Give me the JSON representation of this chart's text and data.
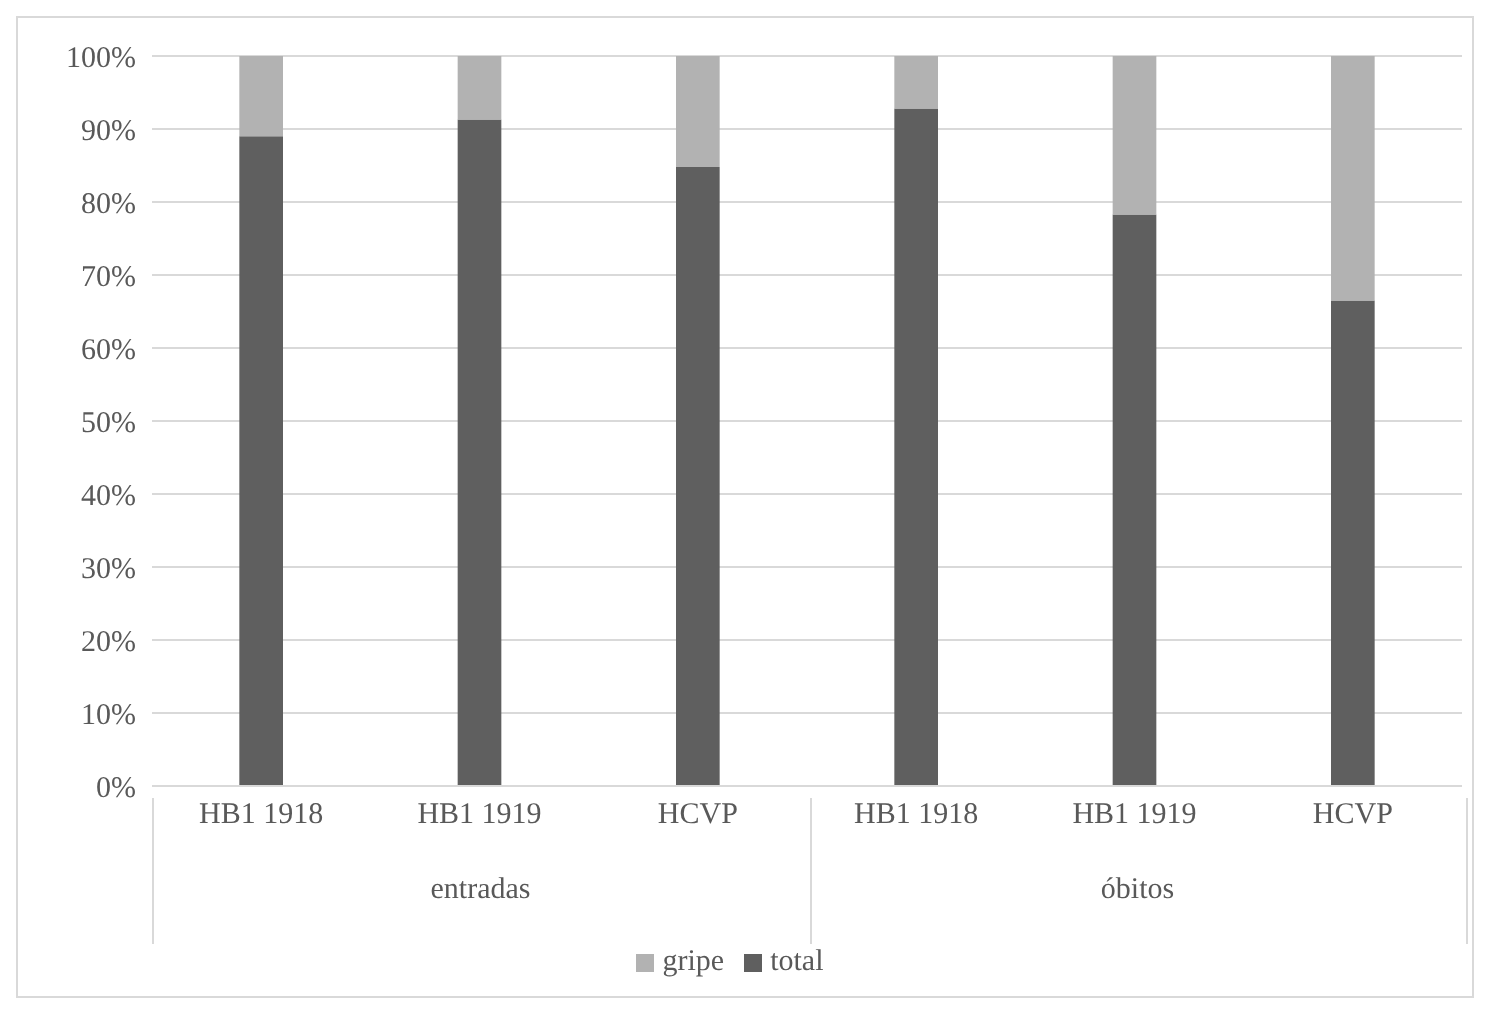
{
  "chart_data": {
    "type": "bar",
    "stacked": true,
    "categories": [
      "HB1 1918",
      "HB1 1919",
      "HCVP",
      "HB1 1918",
      "HB1 1919",
      "HCVP"
    ],
    "series": [
      {
        "name": "total",
        "color": "#5f5f5f",
        "values": [
          89,
          91.3,
          84.8,
          92.8,
          78.3,
          66.5
        ]
      },
      {
        "name": "gripe",
        "color": "#b2b2b2",
        "values": [
          11,
          8.7,
          15.2,
          7.2,
          21.7,
          33.5
        ]
      }
    ],
    "ylim": [
      0,
      100
    ],
    "yticks": [
      {
        "value": 0,
        "label": "0%"
      },
      {
        "value": 10,
        "label": "10%"
      },
      {
        "value": 20,
        "label": "20%"
      },
      {
        "value": 30,
        "label": "30%"
      },
      {
        "value": 40,
        "label": "40%"
      },
      {
        "value": 50,
        "label": "50%"
      },
      {
        "value": 60,
        "label": "60%"
      },
      {
        "value": 70,
        "label": "70%"
      },
      {
        "value": 80,
        "label": "80%"
      },
      {
        "value": 90,
        "label": "90%"
      },
      {
        "value": 100,
        "label": "100%"
      }
    ],
    "grid": "y",
    "legend": "bottom",
    "annotations": [
      "entradas",
      "óbitos"
    ]
  }
}
